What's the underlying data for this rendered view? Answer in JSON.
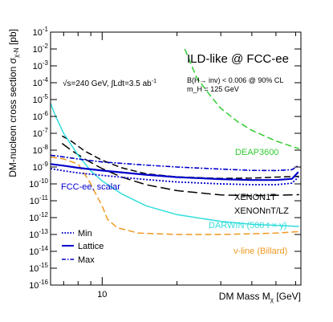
{
  "chart_data": {
    "type": "line",
    "title": "ILD-like @ FCC-ee",
    "xlabel": "DM Mass M",
    "xlabel_sub": "χ",
    "xlabel_unit": " [GeV]",
    "ylabel": "DM-nucleon cross section σ",
    "ylabel_sub": "χ-N",
    "ylabel_unit": " [pb]",
    "xscale": "log",
    "yscale": "log",
    "xlim": [
      6.2,
      63
    ],
    "ylim": [
      1e-16,
      0.1
    ],
    "x_tick_labels": [
      {
        "x": 10,
        "label": "10"
      }
    ],
    "y_tick_labels": [
      {
        "exp": -1,
        "label": "10",
        "sup": "-1"
      },
      {
        "exp": -2,
        "label": "10",
        "sup": "-2"
      },
      {
        "exp": -3,
        "label": "10",
        "sup": "-3"
      },
      {
        "exp": -4,
        "label": "10",
        "sup": "-4"
      },
      {
        "exp": -5,
        "label": "10",
        "sup": "-5"
      },
      {
        "exp": -6,
        "label": "10",
        "sup": "-6"
      },
      {
        "exp": -7,
        "label": "10",
        "sup": "-7"
      },
      {
        "exp": -8,
        "label": "10",
        "sup": "-8"
      },
      {
        "exp": -9,
        "label": "10",
        "sup": "-9"
      },
      {
        "exp": -10,
        "label": "10",
        "sup": "-10"
      },
      {
        "exp": -11,
        "label": "10",
        "sup": "-11"
      },
      {
        "exp": -12,
        "label": "10",
        "sup": "-12"
      },
      {
        "exp": -13,
        "label": "10",
        "sup": "-13"
      },
      {
        "exp": -14,
        "label": "10",
        "sup": "-14"
      },
      {
        "exp": -15,
        "label": "10",
        "sup": "-15"
      },
      {
        "exp": -16,
        "label": "10",
        "sup": "-16"
      }
    ],
    "annotations": {
      "energy": "√s=240 GeV, ∫Ldt=3.5 ab",
      "energy_sup": "-1",
      "br_limit": "B(H→ inv) < 0.006 @ 90% CL",
      "higgs_mass": "m_H = 125 GeV"
    },
    "series": [
      {
        "name": "DEAP3600",
        "color": "#33cc33",
        "style": "dashed",
        "points": [
          [
            21.5,
            0.01
          ],
          [
            24,
            0.0002
          ],
          [
            27,
            2e-05
          ],
          [
            30,
            3e-06
          ],
          [
            35,
            5e-07
          ],
          [
            40,
            1.5e-07
          ],
          [
            50,
            3.5e-08
          ],
          [
            62,
            1.2e-08
          ]
        ]
      },
      {
        "name": "XENON1T",
        "color": "#000000",
        "style": "dashed",
        "points": [
          [
            6.9,
            7e-08
          ],
          [
            7.5,
            3.5e-08
          ],
          [
            8.5,
            9e-09
          ],
          [
            10,
            2.5e-09
          ],
          [
            12,
            9e-10
          ],
          [
            15,
            4e-10
          ],
          [
            20,
            2.6e-10
          ],
          [
            30,
            2.1e-10
          ],
          [
            40,
            2.2e-10
          ],
          [
            50,
            2.5e-10
          ],
          [
            62,
            2.8e-10
          ]
        ]
      },
      {
        "name": "XENONnT/LZ",
        "color": "#000000",
        "style": "long-dashed",
        "points": [
          [
            6.9,
            2.5e-08
          ],
          [
            7.5,
            1e-08
          ],
          [
            8.5,
            3e-09
          ],
          [
            10,
            8e-10
          ],
          [
            12,
            2.5e-10
          ],
          [
            15,
            9e-11
          ],
          [
            20,
            4e-11
          ],
          [
            30,
            2.2e-11
          ],
          [
            40,
            2e-11
          ],
          [
            50,
            2.1e-11
          ],
          [
            62,
            2.3e-11
          ]
        ]
      },
      {
        "name": "DARWIN (500 t × y)",
        "color": "#33dddd",
        "style": "solid",
        "points": [
          [
            6.2,
            6e-06
          ],
          [
            6.5,
            1e-06
          ],
          [
            7,
            1e-07
          ],
          [
            8,
            5e-09
          ],
          [
            9,
            6e-10
          ],
          [
            10,
            1.5e-10
          ],
          [
            12,
            2.5e-11
          ],
          [
            15,
            5e-12
          ],
          [
            20,
            1.5e-12
          ],
          [
            30,
            6e-13
          ],
          [
            40,
            4e-13
          ],
          [
            50,
            3.5e-13
          ],
          [
            62,
            3e-13
          ]
        ]
      },
      {
        "name": "ν-line (Billard)",
        "color": "#ee9922",
        "style": "dashed",
        "points": [
          [
            6.2,
            4e-09
          ],
          [
            7,
            3e-09
          ],
          [
            8,
            1.5e-09
          ],
          [
            8.6,
            3e-10
          ],
          [
            9,
            1e-10
          ],
          [
            9.5,
            2e-11
          ],
          [
            10,
            5e-12
          ],
          [
            10.5,
            8e-13
          ],
          [
            11.5,
            2.5e-13
          ],
          [
            14,
            1.2e-13
          ],
          [
            20,
            1e-13
          ],
          [
            30,
            1e-13
          ],
          [
            40,
            1.1e-13
          ],
          [
            50,
            1.2e-13
          ],
          [
            63,
            1.5e-13
          ]
        ]
      },
      {
        "name": "Max",
        "color": "#0000cc",
        "style": "dash-dot",
        "points": [
          [
            6.2,
            5e-09
          ],
          [
            7,
            4e-09
          ],
          [
            8,
            3e-09
          ],
          [
            10,
            2e-09
          ],
          [
            15,
            1.3e-09
          ],
          [
            20,
            1e-09
          ],
          [
            30,
            7.5e-10
          ],
          [
            40,
            6.3e-10
          ],
          [
            50,
            6.2e-10
          ],
          [
            58,
            7e-10
          ],
          [
            61.5,
            1.2e-09
          ]
        ]
      },
      {
        "name": "Lattice",
        "color": "#0000cc",
        "style": "solid",
        "points": [
          [
            6.2,
            1.5e-09
          ],
          [
            7,
            1.2e-09
          ],
          [
            8,
            9e-10
          ],
          [
            10,
            6.2e-10
          ],
          [
            15,
            3.5e-10
          ],
          [
            20,
            2.5e-10
          ],
          [
            30,
            1.9e-10
          ],
          [
            40,
            1.7e-10
          ],
          [
            50,
            1.7e-10
          ],
          [
            58,
            2e-10
          ],
          [
            61.5,
            5e-10
          ]
        ]
      },
      {
        "name": "Min",
        "color": "#0000cc",
        "style": "dotted",
        "points": [
          [
            6.2,
            8e-10
          ],
          [
            7,
            6e-10
          ],
          [
            8,
            4.5e-10
          ],
          [
            10,
            3.2e-10
          ],
          [
            15,
            1.8e-10
          ],
          [
            20,
            1.3e-10
          ],
          [
            30,
            1e-10
          ],
          [
            40,
            9e-11
          ],
          [
            50,
            9e-11
          ],
          [
            58,
            1.1e-10
          ],
          [
            61.5,
            2.5e-10
          ]
        ]
      }
    ],
    "curve_labels": [
      {
        "text": "DEAP3600",
        "color": "#33cc33"
      },
      {
        "text": "FCC-ee, scalar",
        "color": "#0000cc"
      },
      {
        "text": "XENON1T",
        "color": "#000000"
      },
      {
        "text": "XENONnT/LZ",
        "color": "#000000"
      },
      {
        "text": "DARWIN (500 t × y)",
        "color": "#33dddd"
      },
      {
        "text": "ν-line (Billard)",
        "color": "#ee9922"
      }
    ],
    "legend": {
      "placement": "bottom-left",
      "entries": [
        {
          "label": "Min",
          "color": "#0000cc",
          "style": "dotted"
        },
        {
          "label": "Lattice",
          "color": "#0000cc",
          "style": "solid"
        },
        {
          "label": "Max",
          "color": "#0000cc",
          "style": "dash-dot"
        }
      ]
    }
  }
}
